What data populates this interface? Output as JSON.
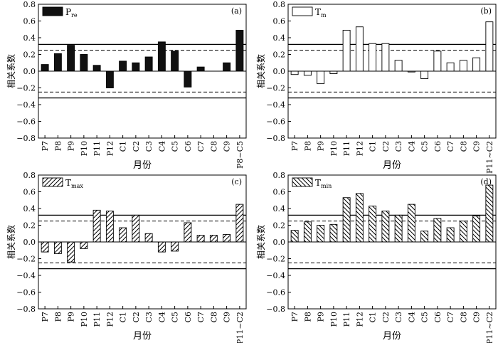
{
  "chart_data": [
    {
      "type": "bar",
      "panel_label": "(a)",
      "legend_main": "P",
      "legend_sub": "re",
      "fill": "solid",
      "ylabel": "相关系数",
      "xlabel": "月份",
      "ylim": [
        -0.8,
        0.8
      ],
      "yticks": [
        "0.8",
        "0.6",
        "0.4",
        "0.2",
        "0.0",
        "−0.2",
        "−0.4",
        "−0.6",
        "−0.8"
      ],
      "categories": [
        "P7",
        "P8",
        "P9",
        "P10",
        "P11",
        "P12",
        "C1",
        "C2",
        "C3",
        "C4",
        "C5",
        "C6",
        "C7",
        "C8",
        "C9",
        "P8~C5"
      ],
      "values": [
        0.08,
        0.21,
        0.31,
        0.2,
        0.07,
        -0.2,
        0.12,
        0.1,
        0.17,
        0.35,
        0.24,
        -0.19,
        0.05,
        0.0,
        0.1,
        0.49
      ],
      "ref_lines": {
        "solid": [
          0.32,
          -0.32
        ],
        "dashed": [
          0.25,
          -0.25
        ]
      }
    },
    {
      "type": "bar",
      "panel_label": "(b)",
      "legend_main": "T",
      "legend_sub": "m",
      "fill": "empty",
      "ylabel": "相关系数",
      "xlabel": "月份",
      "ylim": [
        -0.8,
        0.8
      ],
      "yticks": [
        "0.8",
        "0.6",
        "0.4",
        "0.2",
        "0.0",
        "−0.2",
        "−0.4",
        "−0.6",
        "−0.8"
      ],
      "categories": [
        "P7",
        "P8",
        "P9",
        "P10",
        "P11",
        "P12",
        "C1",
        "C2",
        "C3",
        "C4",
        "C5",
        "C6",
        "C7",
        "C8",
        "C9",
        "P11~C2"
      ],
      "values": [
        -0.04,
        -0.05,
        -0.15,
        -0.03,
        0.49,
        0.53,
        0.33,
        0.33,
        0.13,
        -0.01,
        -0.09,
        0.24,
        0.1,
        0.13,
        0.16,
        0.59
      ],
      "ref_lines": {
        "solid": [
          0.32,
          -0.32
        ],
        "dashed": [
          0.25,
          -0.25
        ]
      }
    },
    {
      "type": "bar",
      "panel_label": "(c)",
      "legend_main": "T",
      "legend_sub": "max",
      "fill": "hatch-forward",
      "ylabel": "相关系数",
      "xlabel": "月份",
      "ylim": [
        -0.8,
        0.8
      ],
      "yticks": [
        "0.8",
        "0.6",
        "0.4",
        "0.2",
        "0.0",
        "−0.2",
        "−0.4",
        "−0.6",
        "−0.8"
      ],
      "categories": [
        "P7",
        "P8",
        "P9",
        "P10",
        "P11",
        "P12",
        "C1",
        "C2",
        "C3",
        "C4",
        "C5",
        "C6",
        "C7",
        "C8",
        "C9",
        "P11~C2"
      ],
      "values": [
        -0.12,
        -0.14,
        -0.24,
        -0.08,
        0.38,
        0.37,
        0.17,
        0.32,
        0.1,
        -0.12,
        -0.11,
        0.23,
        0.08,
        0.08,
        0.09,
        0.45
      ],
      "ref_lines": {
        "solid": [
          0.32,
          -0.32
        ],
        "dashed": [
          0.25,
          -0.25
        ]
      }
    },
    {
      "type": "bar",
      "panel_label": "(d)",
      "legend_main": "T",
      "legend_sub": "min",
      "fill": "hatch-back",
      "ylabel": "相关系数",
      "xlabel": "月份",
      "ylim": [
        -0.8,
        0.8
      ],
      "yticks": [
        "0.8",
        "0.6",
        "0.4",
        "0.2",
        "0.0",
        "−0.2",
        "−0.4",
        "−0.6",
        "−0.8"
      ],
      "categories": [
        "P7",
        "P8",
        "P9",
        "P10",
        "P11",
        "P12",
        "C1",
        "C2",
        "C3",
        "C4",
        "C5",
        "C6",
        "C7",
        "C8",
        "C9",
        "P11~C2"
      ],
      "values": [
        0.14,
        0.24,
        0.2,
        0.21,
        0.53,
        0.58,
        0.43,
        0.37,
        0.32,
        0.45,
        0.13,
        0.28,
        0.17,
        0.25,
        0.31,
        0.68
      ],
      "ref_lines": {
        "solid": [
          0.32,
          -0.32
        ],
        "dashed": [
          0.25,
          -0.25
        ]
      }
    }
  ]
}
